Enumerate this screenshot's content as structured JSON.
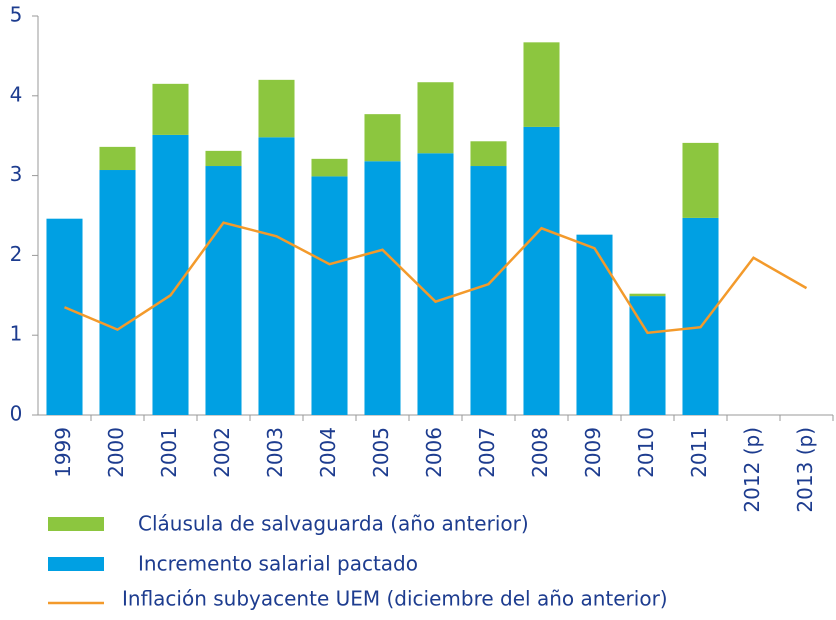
{
  "chart_data": {
    "type": "bar",
    "categories": [
      "1999",
      "2000",
      "2001",
      "2002",
      "2003",
      "2004",
      "2005",
      "2006",
      "2007",
      "2008",
      "2009",
      "2010",
      "2011",
      "2012 (p)",
      "2013 (p)"
    ],
    "series": [
      {
        "name": "Cláusula de salvaguarda (año anterior)",
        "type": "bar",
        "color": "#8cc63f",
        "values": [
          null,
          0.29,
          0.64,
          0.19,
          0.72,
          0.22,
          0.59,
          0.89,
          0.31,
          1.06,
          null,
          0.03,
          0.94,
          null,
          null
        ]
      },
      {
        "name": "Incremento salarial pactado",
        "type": "bar",
        "color": "#00a0e3",
        "values": [
          2.46,
          3.07,
          3.51,
          3.12,
          3.48,
          2.99,
          3.18,
          3.28,
          3.12,
          3.61,
          2.26,
          1.49,
          2.47,
          null,
          null
        ]
      },
      {
        "name": "Inflación subyacente UEM (diciembre del año anterior)",
        "type": "line",
        "color": "#f39a2b",
        "values": [
          1.35,
          1.07,
          1.5,
          2.41,
          2.24,
          1.89,
          2.07,
          1.42,
          1.64,
          2.34,
          2.09,
          1.03,
          1.1,
          1.97,
          1.59
        ]
      }
    ],
    "ylim": [
      0,
      5
    ],
    "yticks": [
      0,
      1,
      2,
      3,
      4,
      5
    ],
    "grid": false
  }
}
